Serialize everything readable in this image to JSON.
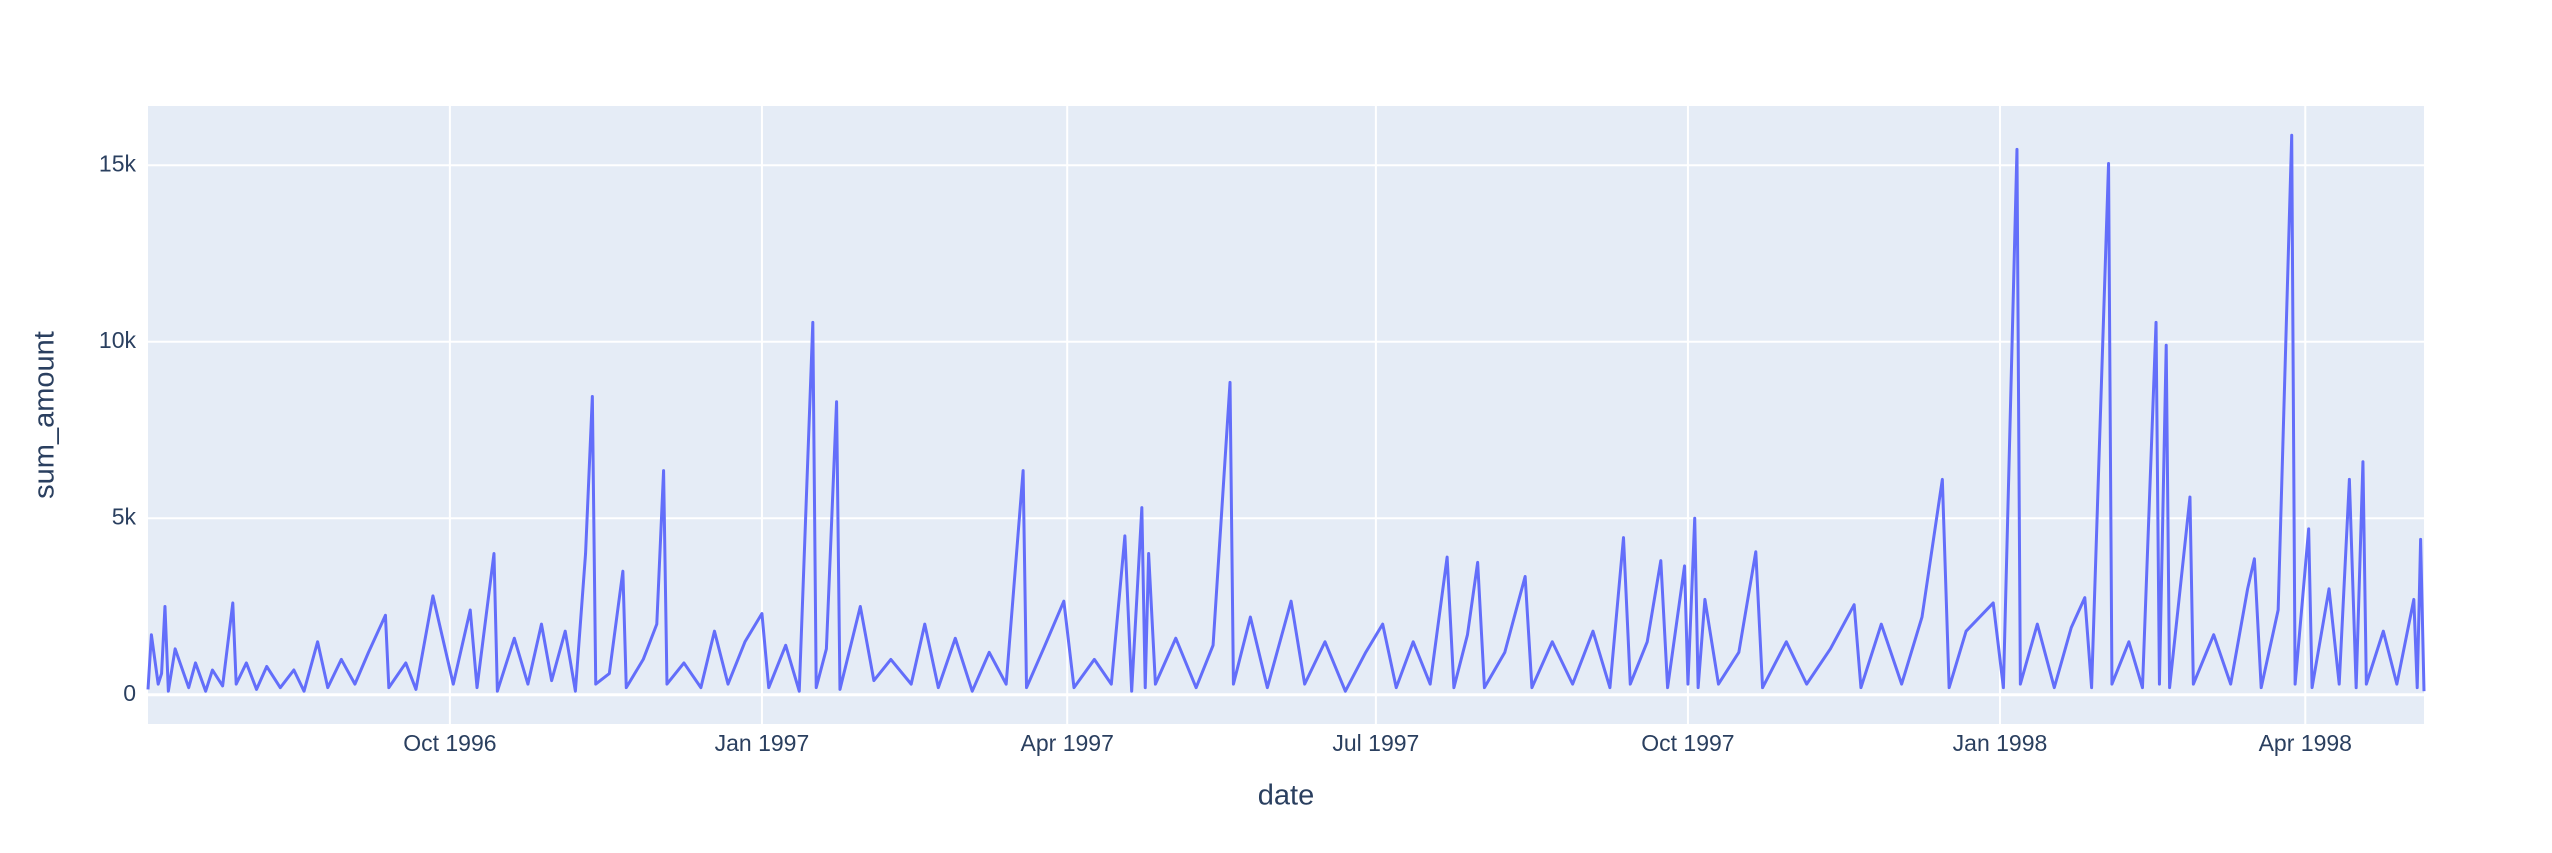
{
  "chart_data": {
    "type": "line",
    "x_label": "date",
    "y_label": "sum_amount",
    "xlim": [
      "1996-07-04",
      "1998-05-06"
    ],
    "ylim": [
      -830,
      16680
    ],
    "xticks": [
      {
        "value": "1996-10-01",
        "label": "Oct 1996"
      },
      {
        "value": "1997-01-01",
        "label": "Jan 1997"
      },
      {
        "value": "1997-04-01",
        "label": "Apr 1997"
      },
      {
        "value": "1997-07-01",
        "label": "Jul 1997"
      },
      {
        "value": "1997-10-01",
        "label": "Oct 1997"
      },
      {
        "value": "1998-01-01",
        "label": "Jan 1998"
      },
      {
        "value": "1998-04-01",
        "label": "Apr 1998"
      }
    ],
    "yticks": [
      0,
      {
        "value": 5000,
        "label": "5k"
      },
      {
        "value": 10000,
        "label": "10k"
      },
      {
        "value": 15000,
        "label": "15k"
      }
    ],
    "grid": true,
    "color": "#636efa",
    "x": [
      "1996-07-04",
      "1996-07-05",
      "1996-07-07",
      "1996-07-08",
      "1996-07-09",
      "1996-07-10",
      "1996-07-12",
      "1996-07-16",
      "1996-07-18",
      "1996-07-21",
      "1996-07-23",
      "1996-07-26",
      "1996-07-29",
      "1996-07-30",
      "1996-08-02",
      "1996-08-05",
      "1996-08-08",
      "1996-08-12",
      "1996-08-16",
      "1996-08-19",
      "1996-08-23",
      "1996-08-26",
      "1996-08-30",
      "1996-09-03",
      "1996-09-07",
      "1996-09-12",
      "1996-09-13",
      "1996-09-18",
      "1996-09-21",
      "1996-09-26",
      "1996-10-02",
      "1996-10-07",
      "1996-10-09",
      "1996-10-14",
      "1996-10-15",
      "1996-10-20",
      "1996-10-24",
      "1996-10-28",
      "1996-10-31",
      "1996-11-04",
      "1996-11-07",
      "1996-11-10",
      "1996-11-12",
      "1996-11-13",
      "1996-11-17",
      "1996-11-21",
      "1996-11-22",
      "1996-11-27",
      "1996-12-01",
      "1996-12-03",
      "1996-12-04",
      "1996-12-09",
      "1996-12-14",
      "1996-12-18",
      "1996-12-22",
      "1996-12-27",
      "1997-01-01",
      "1997-01-03",
      "1997-01-08",
      "1997-01-12",
      "1997-01-16",
      "1997-01-17",
      "1997-01-20",
      "1997-01-23",
      "1997-01-24",
      "1997-01-30",
      "1997-02-03",
      "1997-02-08",
      "1997-02-14",
      "1997-02-18",
      "1997-02-22",
      "1997-02-27",
      "1997-03-04",
      "1997-03-09",
      "1997-03-14",
      "1997-03-19",
      "1997-03-20",
      "1997-03-25",
      "1997-03-31",
      "1997-04-03",
      "1997-04-09",
      "1997-04-14",
      "1997-04-18",
      "1997-04-20",
      "1997-04-23",
      "1997-04-24",
      "1997-04-25",
      "1997-04-27",
      "1997-05-03",
      "1997-05-09",
      "1997-05-14",
      "1997-05-19",
      "1997-05-20",
      "1997-05-25",
      "1997-05-30",
      "1997-06-06",
      "1997-06-10",
      "1997-06-16",
      "1997-06-22",
      "1997-06-28",
      "1997-07-03",
      "1997-07-07",
      "1997-07-12",
      "1997-07-17",
      "1997-07-22",
      "1997-07-24",
      "1997-07-28",
      "1997-07-31",
      "1997-08-02",
      "1997-08-08",
      "1997-08-14",
      "1997-08-16",
      "1997-08-22",
      "1997-08-28",
      "1997-09-03",
      "1997-09-08",
      "1997-09-12",
      "1997-09-14",
      "1997-09-19",
      "1997-09-23",
      "1997-09-25",
      "1997-09-30",
      "1997-10-01",
      "1997-10-03",
      "1997-10-04",
      "1997-10-06",
      "1997-10-10",
      "1997-10-16",
      "1997-10-21",
      "1997-10-23",
      "1997-10-30",
      "1997-11-05",
      "1997-11-12",
      "1997-11-19",
      "1997-11-21",
      "1997-11-27",
      "1997-12-03",
      "1997-12-09",
      "1997-12-15",
      "1997-12-17",
      "1997-12-22",
      "1997-12-30",
      "1998-01-02",
      "1998-01-06",
      "1998-01-07",
      "1998-01-12",
      "1998-01-17",
      "1998-01-22",
      "1998-01-26",
      "1998-01-28",
      "1998-02-02",
      "1998-02-03",
      "1998-02-08",
      "1998-02-12",
      "1998-02-16",
      "1998-02-17",
      "1998-02-19",
      "1998-02-20",
      "1998-02-26",
      "1998-02-27",
      "1998-03-05",
      "1998-03-10",
      "1998-03-15",
      "1998-03-17",
      "1998-03-19",
      "1998-03-24",
      "1998-03-28",
      "1998-03-29",
      "1998-04-02",
      "1998-04-03",
      "1998-04-08",
      "1998-04-11",
      "1998-04-14",
      "1998-04-16",
      "1998-04-18",
      "1998-04-19",
      "1998-04-24",
      "1998-04-28",
      "1998-05-03",
      "1998-05-04",
      "1998-05-05",
      "1998-05-06"
    ],
    "values": [
      150,
      1700,
      300,
      600,
      2500,
      100,
      1300,
      200,
      900,
      100,
      700,
      250,
      2600,
      300,
      900,
      150,
      800,
      200,
      700,
      100,
      1500,
      200,
      1000,
      300,
      1200,
      2250,
      200,
      900,
      150,
      2800,
      300,
      2400,
      200,
      4000,
      100,
      1600,
      300,
      2000,
      400,
      1800,
      100,
      4000,
      8450,
      300,
      600,
      3500,
      200,
      1000,
      2000,
      6350,
      300,
      900,
      200,
      1800,
      300,
      1500,
      2300,
      200,
      1400,
      100,
      10550,
      200,
      1300,
      8300,
      150,
      2500,
      400,
      1000,
      300,
      2000,
      200,
      1600,
      100,
      1200,
      300,
      6350,
      200,
      1300,
      2650,
      200,
      1000,
      300,
      4500,
      100,
      5300,
      200,
      4000,
      300,
      1600,
      200,
      1400,
      8850,
      300,
      2200,
      200,
      2650,
      300,
      1500,
      100,
      1200,
      2000,
      200,
      1500,
      300,
      3900,
      200,
      1700,
      3750,
      200,
      1200,
      3350,
      200,
      1500,
      300,
      1800,
      200,
      4450,
      300,
      1500,
      3800,
      200,
      3650,
      300,
      5000,
      200,
      2700,
      300,
      1200,
      4050,
      200,
      1500,
      300,
      1300,
      2550,
      200,
      2000,
      300,
      2200,
      6100,
      200,
      1800,
      2600,
      200,
      15450,
      300,
      2000,
      200,
      1900,
      2750,
      200,
      15050,
      300,
      1500,
      200,
      10550,
      300,
      9900,
      200,
      5600,
      300,
      1700,
      300,
      3000,
      3850,
      200,
      2400,
      15850,
      300,
      4700,
      200,
      3000,
      300,
      6100,
      200,
      6600,
      300,
      1800,
      300,
      2700,
      200,
      4400,
      100
    ]
  }
}
